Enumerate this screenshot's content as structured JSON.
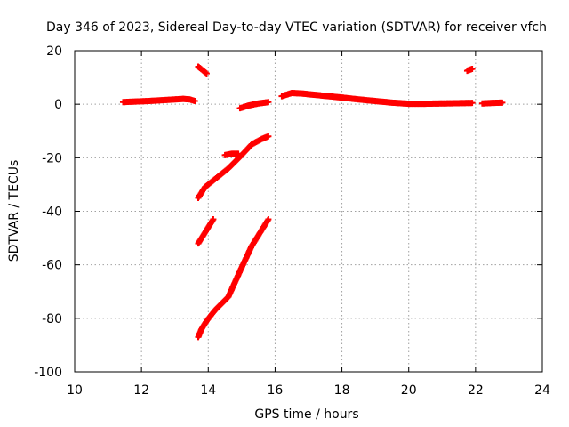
{
  "chart_data": {
    "type": "scatter",
    "title": "Day 346 of 2023, Sidereal Day-to-day VTEC variation (SDTVAR) for receiver vfch",
    "xlabel": "GPS time / hours",
    "ylabel": "SDTVAR / TECUs",
    "xlim": [
      10,
      24
    ],
    "ylim": [
      -100,
      20
    ],
    "xticks": [
      10,
      12,
      14,
      16,
      18,
      20,
      22,
      24
    ],
    "yticks": [
      -100,
      -80,
      -60,
      -40,
      -20,
      0,
      20
    ],
    "xtick_labels": [
      "10",
      "12",
      "14",
      "16",
      "18",
      "20",
      "22",
      "24"
    ],
    "ytick_labels": [
      "-100",
      "-80",
      "-60",
      "-40",
      "-20",
      "0",
      "20"
    ],
    "grid": true,
    "marker": "plus",
    "color": "#ff0000",
    "series": [
      {
        "x": [
          11.45,
          11.8,
          12.2,
          12.6,
          13.0,
          13.25,
          13.45,
          13.6
        ],
        "y": [
          0.8,
          1.0,
          1.2,
          1.5,
          1.8,
          2.0,
          1.8,
          1.2
        ]
      },
      {
        "x": [
          13.7,
          13.8,
          13.95
        ],
        "y": [
          14,
          13,
          11.5
        ]
      },
      {
        "x": [
          13.7,
          13.9,
          14.2,
          14.6,
          15.0,
          15.3,
          15.6,
          15.8
        ],
        "y": [
          -35,
          -31,
          -28,
          -24,
          -19,
          -15,
          -13,
          -12
        ]
      },
      {
        "x": [
          13.7,
          13.85,
          14.0,
          14.15
        ],
        "y": [
          -52,
          -49,
          -46,
          -43
        ]
      },
      {
        "x": [
          13.7,
          13.8,
          13.95,
          14.2,
          14.6,
          15.0,
          15.3,
          15.6,
          15.8
        ],
        "y": [
          -87,
          -84,
          -81,
          -77,
          -72,
          -61,
          -53,
          -47,
          -43
        ]
      },
      {
        "x": [
          14.5,
          14.7,
          14.9
        ],
        "y": [
          -19,
          -18.5,
          -18.5
        ]
      },
      {
        "x": [
          14.95,
          15.2,
          15.5,
          15.8
        ],
        "y": [
          -1.5,
          -0.5,
          0.3,
          0.8
        ]
      },
      {
        "x": [
          16.2,
          16.5,
          16.8,
          17.2,
          17.6,
          18.0,
          18.5,
          19.0,
          19.5,
          20.0,
          20.5,
          21.0,
          21.5,
          21.9
        ],
        "y": [
          3.0,
          4.2,
          4.0,
          3.5,
          3.0,
          2.5,
          1.8,
          1.2,
          0.6,
          0.2,
          0.2,
          0.3,
          0.4,
          0.5
        ]
      },
      {
        "x": [
          21.75,
          21.9
        ],
        "y": [
          12.5,
          13.2
        ]
      },
      {
        "x": [
          22.2,
          22.5,
          22.8
        ],
        "y": [
          0.3,
          0.5,
          0.6
        ]
      }
    ]
  }
}
